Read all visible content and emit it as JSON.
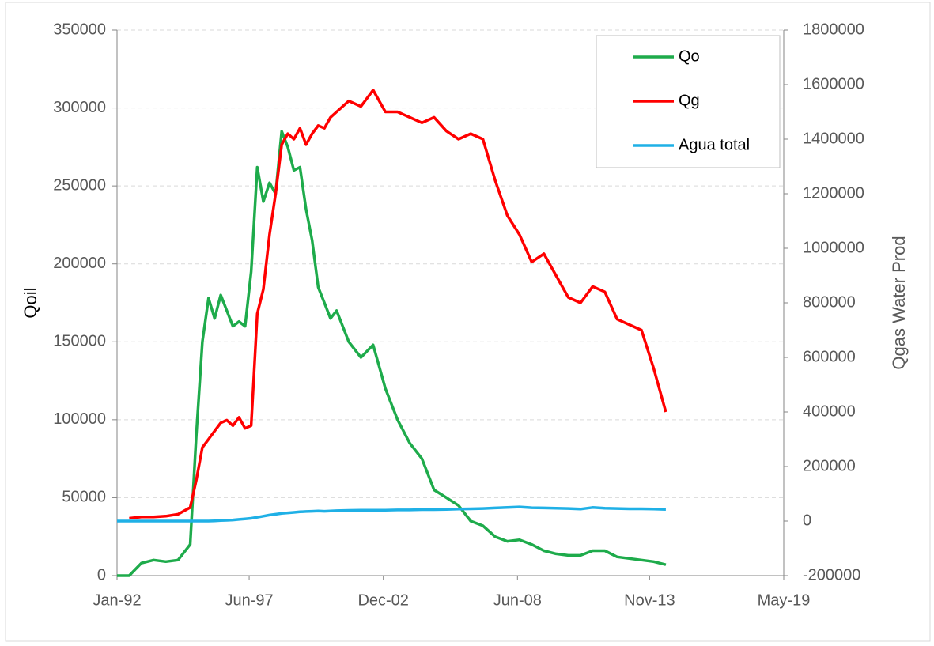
{
  "chart_data": {
    "type": "line",
    "x": [
      "1992-01",
      "1992-07",
      "1993-01",
      "1993-07",
      "1994-01",
      "1994-07",
      "1995-01",
      "1995-04",
      "1995-07",
      "1995-10",
      "1996-01",
      "1996-04",
      "1996-07",
      "1996-10",
      "1997-01",
      "1997-04",
      "1997-07",
      "1997-10",
      "1998-01",
      "1998-04",
      "1998-07",
      "1998-10",
      "1999-01",
      "1999-04",
      "1999-07",
      "1999-10",
      "2000-01",
      "2000-04",
      "2000-07",
      "2000-10",
      "2001-01",
      "2001-07",
      "2002-01",
      "2002-07",
      "2003-01",
      "2003-07",
      "2004-01",
      "2004-07",
      "2005-01",
      "2005-07",
      "2006-01",
      "2006-07",
      "2007-01",
      "2007-07",
      "2008-01",
      "2008-07",
      "2009-01",
      "2009-07",
      "2010-01",
      "2010-07",
      "2011-01",
      "2011-07",
      "2012-01",
      "2012-07",
      "2013-01",
      "2013-07",
      "2014-01",
      "2014-07"
    ],
    "series": [
      {
        "name": "Qo",
        "color": "#1eab4b",
        "axis": "y",
        "values": [
          0,
          0,
          8000,
          10000,
          9000,
          10000,
          20000,
          90000,
          150000,
          178000,
          165000,
          180000,
          170000,
          160000,
          163000,
          160000,
          195000,
          262000,
          240000,
          252000,
          245000,
          285000,
          275000,
          260000,
          262000,
          235000,
          215000,
          185000,
          175000,
          165000,
          170000,
          150000,
          140000,
          148000,
          120000,
          100000,
          85000,
          75000,
          55000,
          50000,
          45000,
          35000,
          32000,
          25000,
          22000,
          23000,
          20000,
          16000,
          14000,
          13000,
          13000,
          16000,
          16000,
          12000,
          11000,
          10000,
          9000,
          7000
        ]
      },
      {
        "name": "Qg",
        "color": "#ff0000",
        "axis": "y2",
        "values": [
          null,
          10000,
          15000,
          15000,
          18000,
          25000,
          50000,
          150000,
          270000,
          300000,
          330000,
          360000,
          370000,
          350000,
          380000,
          340000,
          350000,
          760000,
          850000,
          1050000,
          1200000,
          1380000,
          1420000,
          1400000,
          1440000,
          1380000,
          1420000,
          1450000,
          1440000,
          1480000,
          1500000,
          1540000,
          1520000,
          1580000,
          1500000,
          1500000,
          1480000,
          1460000,
          1480000,
          1430000,
          1400000,
          1420000,
          1400000,
          1250000,
          1120000,
          1050000,
          950000,
          980000,
          900000,
          820000,
          800000,
          860000,
          840000,
          740000,
          720000,
          700000,
          560000,
          400000
        ]
      },
      {
        "name": "Agua total",
        "color": "#1fb0e6",
        "axis": "y2",
        "values": [
          0,
          0,
          0,
          0,
          0,
          0,
          0,
          0,
          0,
          0,
          1000,
          2000,
          3000,
          4000,
          6000,
          8000,
          10000,
          14000,
          18000,
          22000,
          25000,
          28000,
          30000,
          32000,
          34000,
          35000,
          36000,
          37000,
          36000,
          37000,
          38000,
          39000,
          40000,
          40000,
          40000,
          41000,
          41000,
          42000,
          42000,
          43000,
          44000,
          45000,
          46000,
          48000,
          50000,
          52000,
          49000,
          48000,
          47000,
          46000,
          44000,
          50000,
          47000,
          46000,
          45000,
          45000,
          44000,
          43000
        ]
      }
    ],
    "y_label": "Qoil",
    "y2_label": "Qgas Water Prod",
    "xlim": [
      "1992-01",
      "2019-05"
    ],
    "xticks": [
      {
        "value": "1992-01",
        "label": "Jan-92"
      },
      {
        "value": "1997-06",
        "label": "Jun-97"
      },
      {
        "value": "2002-12",
        "label": "Dec-02"
      },
      {
        "value": "2008-06",
        "label": "Jun-08"
      },
      {
        "value": "2013-11",
        "label": "Nov-13"
      },
      {
        "value": "2019-05",
        "label": "May-19"
      }
    ],
    "ylim": [
      0,
      350000
    ],
    "yticks": [
      0,
      50000,
      100000,
      150000,
      200000,
      250000,
      300000,
      350000
    ],
    "y2lim": [
      -200000,
      1800000
    ],
    "y2ticks": [
      -200000,
      0,
      200000,
      400000,
      600000,
      800000,
      1000000,
      1200000,
      1400000,
      1600000,
      1800000
    ],
    "grid": true,
    "legend": "upper right"
  }
}
